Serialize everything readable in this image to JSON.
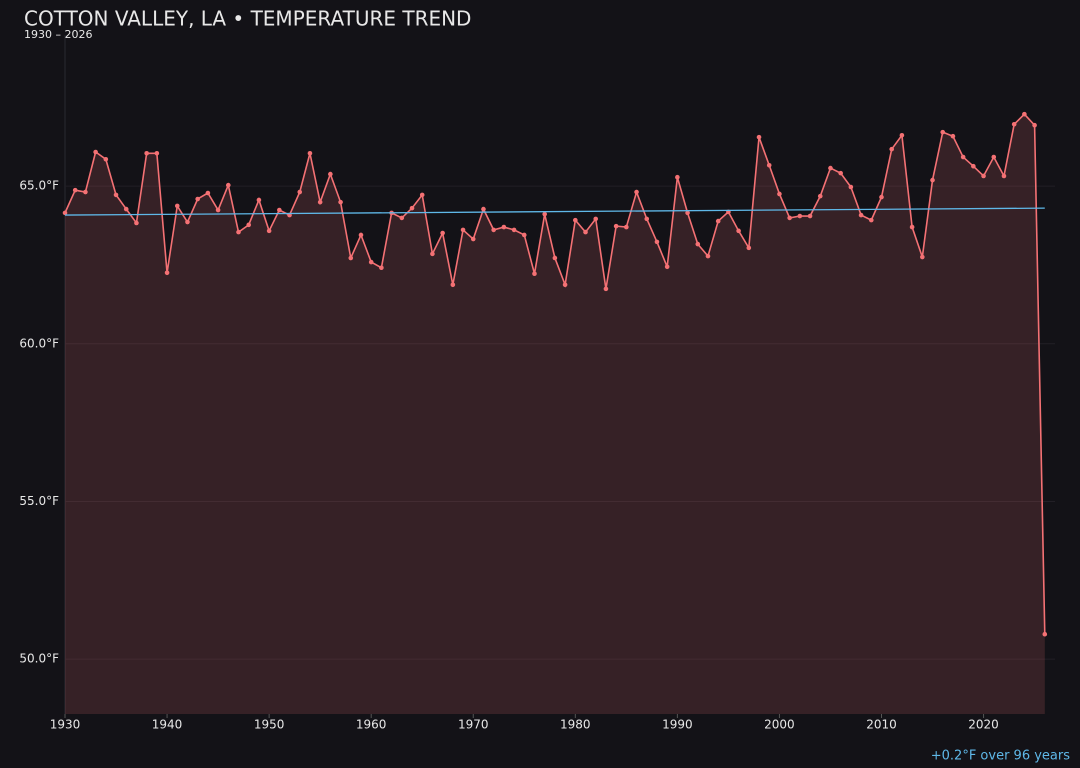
{
  "chart_data": {
    "type": "line",
    "title": "COTTON VALLEY, LA • TEMPERATURE TREND",
    "subtitle": "1930 – 2026",
    "annotation": "+0.2°F over 96 years",
    "x": [
      1930,
      1931,
      1932,
      1933,
      1934,
      1935,
      1936,
      1937,
      1938,
      1939,
      1940,
      1941,
      1942,
      1943,
      1944,
      1945,
      1946,
      1947,
      1948,
      1949,
      1950,
      1951,
      1952,
      1953,
      1954,
      1955,
      1956,
      1957,
      1958,
      1959,
      1960,
      1961,
      1962,
      1963,
      1964,
      1965,
      1966,
      1967,
      1968,
      1969,
      1970,
      1971,
      1972,
      1973,
      1974,
      1975,
      1976,
      1977,
      1978,
      1979,
      1980,
      1981,
      1982,
      1983,
      1984,
      1985,
      1986,
      1987,
      1988,
      1989,
      1990,
      1991,
      1992,
      1993,
      1994,
      1995,
      1996,
      1997,
      1998,
      1999,
      2000,
      2001,
      2002,
      2003,
      2004,
      2005,
      2006,
      2007,
      2008,
      2009,
      2010,
      2011,
      2012,
      2013,
      2014,
      2015,
      2016,
      2017,
      2018,
      2019,
      2020,
      2021,
      2022,
      2023,
      2024,
      2025,
      2026
    ],
    "series": [
      {
        "color": "#f47174",
        "values": [
          64.15,
          64.87,
          64.81,
          66.08,
          65.85,
          64.72,
          64.27,
          63.83,
          66.04,
          66.04,
          62.25,
          64.37,
          63.86,
          64.59,
          64.78,
          64.24,
          65.03,
          63.54,
          63.77,
          64.56,
          63.58,
          64.24,
          64.08,
          64.81,
          66.04,
          64.49,
          65.38,
          64.49,
          62.72,
          63.45,
          62.59,
          62.41,
          64.15,
          63.99,
          64.3,
          64.72,
          62.85,
          63.51,
          61.87,
          63.61,
          63.32,
          64.27,
          63.61,
          63.7,
          63.61,
          63.45,
          62.22,
          64.11,
          62.72,
          61.87,
          63.92,
          63.54,
          63.96,
          61.74,
          63.73,
          63.7,
          64.81,
          63.96,
          63.23,
          62.44,
          65.28,
          64.15,
          63.16,
          62.78,
          63.89,
          64.18,
          63.58,
          63.04,
          66.55,
          65.66,
          64.75,
          63.99,
          64.05,
          64.05,
          64.68,
          65.57,
          65.41,
          64.97,
          64.08,
          63.92,
          64.65,
          66.17,
          66.61,
          63.7,
          62.75,
          65.19,
          66.71,
          66.58,
          65.92,
          65.63,
          65.32,
          65.92,
          65.32,
          66.96,
          67.28,
          66.93,
          50.79
        ]
      }
    ],
    "trend": {
      "color": "#5fb8e8",
      "x": [
        1930,
        2026
      ],
      "values": [
        64.08,
        64.3
      ]
    },
    "xlim": [
      1930,
      2027
    ],
    "xticks": [
      1930,
      1940,
      1950,
      1960,
      1970,
      1980,
      1990,
      2000,
      2010,
      2020
    ],
    "ylim": [
      48.26,
      69.79
    ],
    "yticks": [
      {
        "value": 50,
        "label": "50.0°F"
      },
      {
        "value": 55,
        "label": "55.0°F"
      },
      {
        "value": 60,
        "label": "60.0°F"
      },
      {
        "value": 65,
        "label": "65.0°F"
      }
    ],
    "grid": true
  }
}
